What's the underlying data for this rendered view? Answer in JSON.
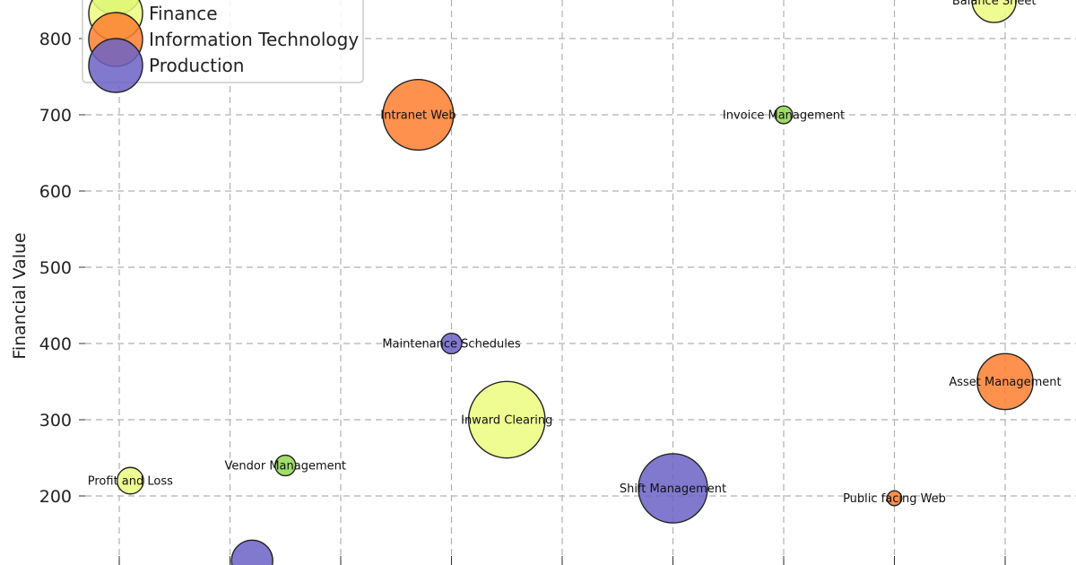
{
  "chart_data": {
    "type": "scatter",
    "title": "",
    "xlabel": "",
    "ylabel": "Financial Value",
    "ylim": [
      120,
      830
    ],
    "y_ticks": [
      200,
      300,
      400,
      500,
      600,
      700,
      800
    ],
    "x_tick_count": 9,
    "xlim": [
      0,
      8.8
    ],
    "grid": true,
    "legend_position": "top-left",
    "series": [
      {
        "name": "Finance",
        "color": "#ecfc7e"
      },
      {
        "name": "Information Technology",
        "color": "#fd7e2e"
      },
      {
        "name": "Production",
        "color": "#6b61c6"
      },
      {
        "name": "",
        "color": "#8ed84f"
      }
    ],
    "points": [
      {
        "label": "Profit and Loss",
        "group": "Finance",
        "x": 0.1,
        "y": 220,
        "size": 18
      },
      {
        "label": "Vendor Management",
        "group": "",
        "x": 1.5,
        "y": 240,
        "size": 14
      },
      {
        "label": "",
        "group": "Production",
        "x": 1.2,
        "y": 115,
        "size": 28
      },
      {
        "label": "Intranet Web",
        "group": "Information Technology",
        "x": 2.7,
        "y": 700,
        "size": 48
      },
      {
        "label": "Maintenance Schedules",
        "group": "Production",
        "x": 3.0,
        "y": 400,
        "size": 14
      },
      {
        "label": "Inward Clearing",
        "group": "Finance",
        "x": 3.5,
        "y": 300,
        "size": 52
      },
      {
        "label": "Shift Management",
        "group": "Production",
        "x": 5.0,
        "y": 210,
        "size": 47
      },
      {
        "label": "Invoice Management",
        "group": "",
        "x": 6.0,
        "y": 700,
        "size": 12
      },
      {
        "label": "Public facing Web",
        "group": "Information Technology",
        "x": 7.0,
        "y": 197,
        "size": 10
      },
      {
        "label": "Balance Sheet",
        "group": "Finance",
        "x": 7.9,
        "y": 850,
        "size": 30
      },
      {
        "label": "Asset Management",
        "group": "Information Technology",
        "x": 8.0,
        "y": 350,
        "size": 38
      }
    ]
  }
}
